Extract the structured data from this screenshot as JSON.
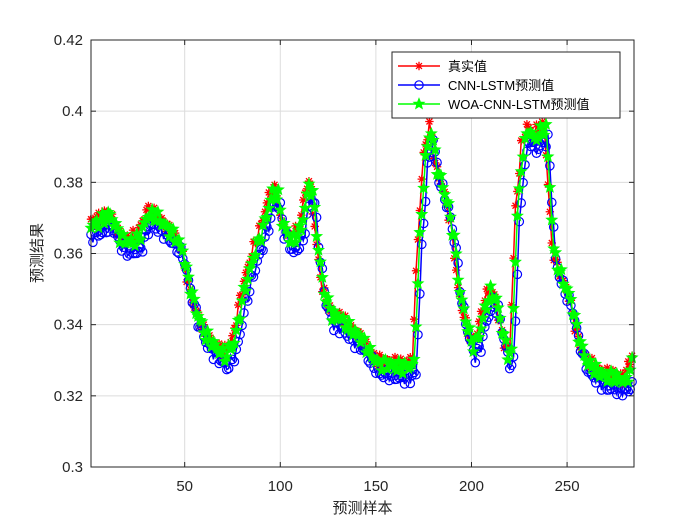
{
  "chart_data": {
    "type": "line",
    "title": "",
    "xlabel": "预测样本",
    "ylabel": "预测结果",
    "xlim": [
      1,
      285
    ],
    "ylim": [
      0.3,
      0.42
    ],
    "xticks": [
      50,
      100,
      150,
      200,
      250
    ],
    "yticks": [
      0.3,
      0.32,
      0.34,
      0.36,
      0.38,
      0.4,
      0.42
    ],
    "ytick_labels": [
      "0.3",
      "0.32",
      "0.34",
      "0.36",
      "0.38",
      "0.4",
      "0.42"
    ],
    "grid": true,
    "legend_position": "top-right",
    "series": [
      {
        "name": "真实值",
        "color": "#ff0000",
        "marker": "asterisk",
        "offset": 0.0,
        "lag": 0
      },
      {
        "name": "CNN-LSTM预测值",
        "color": "#0000ff",
        "marker": "circle",
        "offset": -0.004,
        "lag": 2
      },
      {
        "name": "WOA-CNN-LSTM预测值",
        "color": "#00ff00",
        "marker": "pentagram",
        "offset": -0.001,
        "lag": 1
      }
    ],
    "trend_keypoints": [
      [
        1,
        0.369
      ],
      [
        5,
        0.37
      ],
      [
        10,
        0.372
      ],
      [
        15,
        0.366
      ],
      [
        20,
        0.364
      ],
      [
        25,
        0.365
      ],
      [
        30,
        0.372
      ],
      [
        35,
        0.371
      ],
      [
        40,
        0.368
      ],
      [
        45,
        0.365
      ],
      [
        48,
        0.362
      ],
      [
        50,
        0.356
      ],
      [
        55,
        0.345
      ],
      [
        60,
        0.338
      ],
      [
        65,
        0.335
      ],
      [
        70,
        0.332
      ],
      [
        75,
        0.336
      ],
      [
        80,
        0.35
      ],
      [
        85,
        0.36
      ],
      [
        90,
        0.368
      ],
      [
        95,
        0.378
      ],
      [
        98,
        0.377
      ],
      [
        100,
        0.37
      ],
      [
        105,
        0.364
      ],
      [
        110,
        0.368
      ],
      [
        114,
        0.38
      ],
      [
        116,
        0.378
      ],
      [
        119,
        0.362
      ],
      [
        122,
        0.35
      ],
      [
        126,
        0.344
      ],
      [
        130,
        0.343
      ],
      [
        135,
        0.34
      ],
      [
        140,
        0.338
      ],
      [
        145,
        0.334
      ],
      [
        150,
        0.33
      ],
      [
        155,
        0.33
      ],
      [
        160,
        0.329
      ],
      [
        165,
        0.329
      ],
      [
        169,
        0.33
      ],
      [
        172,
        0.365
      ],
      [
        175,
        0.388
      ],
      [
        178,
        0.396
      ],
      [
        181,
        0.385
      ],
      [
        184,
        0.38
      ],
      [
        187,
        0.374
      ],
      [
        190,
        0.365
      ],
      [
        193,
        0.35
      ],
      [
        197,
        0.34
      ],
      [
        200,
        0.335
      ],
      [
        203,
        0.338
      ],
      [
        206,
        0.345
      ],
      [
        209,
        0.35
      ],
      [
        212,
        0.348
      ],
      [
        215,
        0.34
      ],
      [
        218,
        0.333
      ],
      [
        220,
        0.333
      ],
      [
        223,
        0.372
      ],
      [
        226,
        0.39
      ],
      [
        229,
        0.396
      ],
      [
        232,
        0.393
      ],
      [
        235,
        0.395
      ],
      [
        238,
        0.396
      ],
      [
        240,
        0.38
      ],
      [
        242,
        0.362
      ],
      [
        245,
        0.356
      ],
      [
        248,
        0.352
      ],
      [
        251,
        0.348
      ],
      [
        254,
        0.34
      ],
      [
        257,
        0.334
      ],
      [
        260,
        0.33
      ],
      [
        265,
        0.328
      ],
      [
        270,
        0.326
      ],
      [
        275,
        0.326
      ],
      [
        280,
        0.325
      ],
      [
        283,
        0.33
      ],
      [
        285,
        0.333
      ]
    ]
  }
}
